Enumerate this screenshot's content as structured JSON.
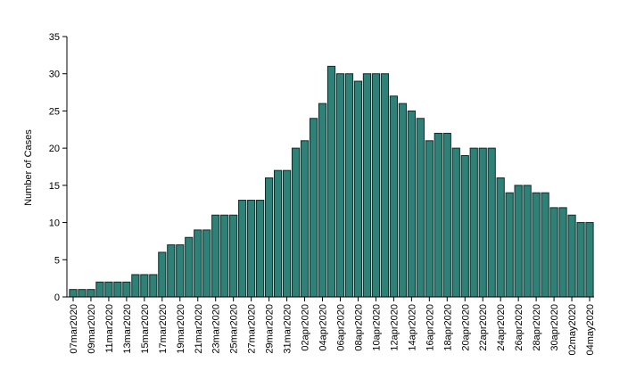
{
  "chart_data": {
    "type": "bar",
    "title": "",
    "xlabel": "",
    "ylabel": "Number of Cases",
    "ylim": [
      0,
      35
    ],
    "yticks": [
      0,
      5,
      10,
      15,
      20,
      25,
      30,
      35
    ],
    "bar_color": "#2f8077",
    "grid": false,
    "legend": "none",
    "categories": [
      "07mar2020",
      "08mar2020",
      "09mar2020",
      "10mar2020",
      "11mar2020",
      "12mar2020",
      "13mar2020",
      "14mar2020",
      "15mar2020",
      "16mar2020",
      "17mar2020",
      "18mar2020",
      "19mar2020",
      "20mar2020",
      "21mar2020",
      "22mar2020",
      "23mar2020",
      "24mar2020",
      "25mar2020",
      "26mar2020",
      "27mar2020",
      "28mar2020",
      "29mar2020",
      "30mar2020",
      "31mar2020",
      "01apr2020",
      "02apr2020",
      "03apr2020",
      "04apr2020",
      "05apr2020",
      "06apr2020",
      "07apr2020",
      "08apr2020",
      "09apr2020",
      "10apr2020",
      "11apr2020",
      "12apr2020",
      "13apr2020",
      "14apr2020",
      "15apr2020",
      "16apr2020",
      "17apr2020",
      "18apr2020",
      "19apr2020",
      "20apr2020",
      "21apr2020",
      "22apr2020",
      "23apr2020",
      "24apr2020",
      "25apr2020",
      "26apr2020",
      "27apr2020",
      "28apr2020",
      "29apr2020",
      "30apr2020",
      "01may2020",
      "02may2020",
      "03may2020",
      "04may2020"
    ],
    "labeled_categories": [
      "07mar2020",
      "09mar2020",
      "11mar2020",
      "13mar2020",
      "15mar2020",
      "17mar2020",
      "19mar2020",
      "21mar2020",
      "23mar2020",
      "25mar2020",
      "27mar2020",
      "29mar2020",
      "31mar2020",
      "02apr2020",
      "04apr2020",
      "06apr2020",
      "08apr2020",
      "10apr2020",
      "12apr2020",
      "14apr2020",
      "16apr2020",
      "18apr2020",
      "20apr2020",
      "22apr2020",
      "24apr2020",
      "26apr2020",
      "28apr2020",
      "30apr2020",
      "02may2020",
      "04may2020"
    ],
    "values": [
      1,
      1,
      1,
      2,
      2,
      2,
      2,
      3,
      3,
      3,
      6,
      7,
      7,
      8,
      9,
      9,
      11,
      11,
      11,
      13,
      13,
      13,
      16,
      17,
      17,
      20,
      21,
      24,
      26,
      31,
      30,
      30,
      29,
      30,
      30,
      30,
      27,
      26,
      25,
      24,
      21,
      22,
      22,
      20,
      19,
      20,
      20,
      20,
      16,
      14,
      15,
      15,
      14,
      14,
      12,
      12,
      11,
      10,
      10
    ]
  }
}
